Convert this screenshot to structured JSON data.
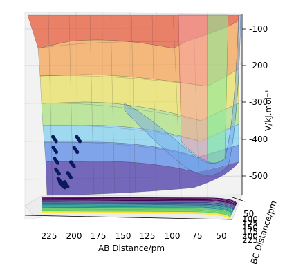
{
  "chart_data": {
    "type": "surface3d",
    "xlabel": "AB Distance/pm",
    "ylabel": "BC Distance/pm",
    "zlabel": "V/kJ.mol⁻¹",
    "x_ticks": [
      "225",
      "200",
      "175",
      "150",
      "125",
      "100",
      "75",
      "50"
    ],
    "y_ticks": [
      "50",
      "100",
      "125",
      "150",
      "175",
      "200",
      "225"
    ],
    "z_ticks": [
      "-100",
      "-200",
      "-300",
      "-400",
      "-500"
    ],
    "z_values": [
      -100,
      -200,
      -300,
      -400,
      -500
    ],
    "x_range": [
      40,
      240
    ],
    "y_range": [
      50,
      225
    ],
    "z_range": [
      -560,
      -60
    ],
    "trajectory_color": "#0a1a5c",
    "trajectory": [
      {
        "ab": 210,
        "bc": 70,
        "v": -400
      },
      {
        "ab": 209,
        "bc": 75,
        "v": -430
      },
      {
        "ab": 207,
        "bc": 80,
        "v": -460
      },
      {
        "ab": 205,
        "bc": 85,
        "v": -490
      },
      {
        "ab": 202,
        "bc": 90,
        "v": -515
      },
      {
        "ab": 199,
        "bc": 100,
        "v": -525
      },
      {
        "ab": 195,
        "bc": 115,
        "v": -528
      },
      {
        "ab": 190,
        "bc": 130,
        "v": -525
      },
      {
        "ab": 184,
        "bc": 150,
        "v": -500
      },
      {
        "ab": 178,
        "bc": 170,
        "v": -470
      },
      {
        "ab": 172,
        "bc": 190,
        "v": -430
      },
      {
        "ab": 168,
        "bc": 200,
        "v": -400
      }
    ],
    "colormap": [
      "#4a2a9a",
      "#4f4fc8",
      "#5a8ae6",
      "#7ccff0",
      "#a6e07a",
      "#e6e35a",
      "#f5b24a",
      "#f07a3c",
      "#e04a30"
    ]
  }
}
